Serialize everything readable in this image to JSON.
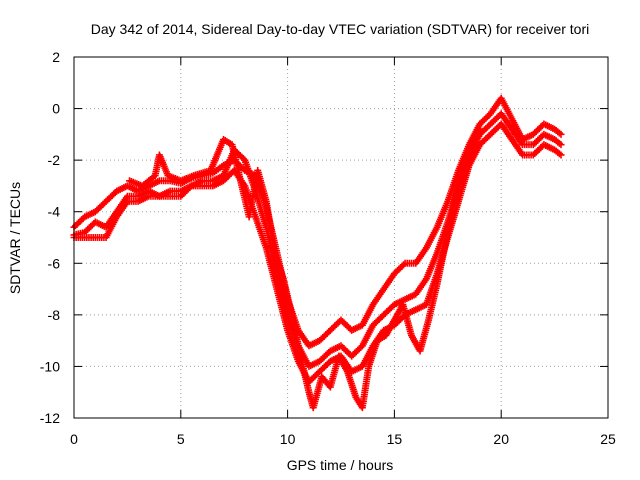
{
  "chart_data": {
    "type": "scatter",
    "title": "Day 342 of 2014, Sidereal Day-to-day VTEC variation (SDTVAR) for receiver tori",
    "xlabel": "GPS time / hours",
    "ylabel": "SDTVAR / TECUs",
    "xlim": [
      0,
      25
    ],
    "ylim": [
      -12,
      2
    ],
    "xticks": [
      0,
      5,
      10,
      15,
      20,
      25
    ],
    "yticks": [
      -12,
      -10,
      -8,
      -6,
      -4,
      -2,
      0,
      2
    ],
    "grid": true,
    "marker": "plus",
    "color": "#ff0000",
    "series": [
      {
        "x": [
          0.0,
          0.5,
          1.0,
          1.5,
          2.0,
          2.5,
          3.0,
          3.5,
          4.0,
          4.5,
          5.0,
          5.5,
          6.0,
          6.5,
          7.0,
          7.5,
          8.0,
          8.5,
          9.0,
          9.5,
          10.0,
          10.5,
          11.0,
          11.5,
          12.0,
          12.5,
          13.0,
          13.5,
          14.0,
          14.5,
          15.0,
          15.5,
          16.0,
          16.5,
          17.0,
          17.5,
          18.0,
          18.5,
          19.0,
          19.5,
          20.0,
          20.5,
          21.0,
          21.5,
          22.0,
          22.5,
          22.8
        ],
        "y": [
          -4.6,
          -4.2,
          -4.0,
          -3.6,
          -3.2,
          -3.0,
          -3.2,
          -3.0,
          -2.8,
          -2.8,
          -2.9,
          -2.7,
          -2.6,
          -2.5,
          -2.2,
          -2.0,
          -2.4,
          -2.6,
          -3.8,
          -5.6,
          -7.4,
          -8.6,
          -9.2,
          -9.0,
          -8.6,
          -8.2,
          -8.6,
          -8.4,
          -7.6,
          -7.0,
          -6.4,
          -6.0,
          -6.0,
          -5.4,
          -4.6,
          -3.6,
          -2.4,
          -1.4,
          -0.6,
          -0.2,
          0.4,
          -0.4,
          -1.2,
          -1.0,
          -0.6,
          -0.8,
          -1.0
        ]
      },
      {
        "x": [
          0.0,
          0.5,
          1.0,
          1.5,
          2.0,
          2.5,
          3.0,
          3.5,
          4.0,
          4.5,
          5.0,
          5.5,
          6.0,
          6.5,
          7.0,
          7.5,
          8.0,
          8.5,
          9.0,
          9.5,
          10.0,
          10.5,
          11.0,
          11.5,
          12.0,
          12.5,
          13.0,
          13.5,
          14.0,
          14.5,
          15.0,
          15.5,
          16.0,
          16.5,
          17.0,
          17.5,
          18.0,
          18.5,
          19.0,
          19.5,
          20.0,
          20.5,
          21.0,
          21.5,
          22.0,
          22.5,
          22.8
        ],
        "y": [
          -4.9,
          -4.8,
          -4.4,
          -4.6,
          -4.0,
          -3.4,
          -3.4,
          -3.2,
          -3.4,
          -3.2,
          -3.2,
          -3.0,
          -2.8,
          -2.8,
          -2.6,
          -1.6,
          -2.0,
          -3.2,
          -4.6,
          -6.4,
          -8.0,
          -9.2,
          -10.0,
          -9.8,
          -9.4,
          -9.2,
          -9.6,
          -9.2,
          -8.4,
          -8.0,
          -7.6,
          -7.4,
          -7.2,
          -6.6,
          -5.6,
          -4.4,
          -3.0,
          -1.8,
          -1.0,
          -0.6,
          -0.2,
          -0.8,
          -1.4,
          -1.4,
          -1.0,
          -1.2,
          -1.4
        ]
      },
      {
        "x": [
          0.0,
          0.5,
          1.0,
          1.5,
          2.0,
          2.5,
          3.0,
          3.5,
          4.0,
          4.5,
          5.0,
          5.5,
          6.0,
          6.5,
          7.0,
          7.5,
          8.0,
          8.5,
          9.0,
          9.5,
          10.0,
          10.5,
          11.0,
          11.5,
          12.0,
          12.5,
          13.0,
          13.5,
          14.0,
          14.5,
          15.0,
          15.5,
          16.0,
          16.5,
          17.0,
          17.5,
          18.0,
          18.5,
          19.0,
          19.5,
          20.0,
          20.5,
          21.0,
          21.5,
          22.0,
          22.5,
          22.8
        ],
        "y": [
          -5.0,
          -5.0,
          -5.0,
          -5.0,
          -4.2,
          -3.6,
          -3.6,
          -3.4,
          -3.4,
          -3.4,
          -3.4,
          -3.0,
          -3.0,
          -3.0,
          -2.8,
          -2.4,
          -3.0,
          -4.2,
          -5.4,
          -7.0,
          -8.6,
          -9.8,
          -10.6,
          -10.2,
          -9.8,
          -9.6,
          -10.2,
          -10.0,
          -9.2,
          -8.6,
          -8.4,
          -8.0,
          -7.8,
          -7.6,
          -6.4,
          -5.0,
          -3.6,
          -2.2,
          -1.4,
          -1.0,
          -0.6,
          -1.2,
          -1.8,
          -1.8,
          -1.4,
          -1.6,
          -1.8
        ]
      },
      {
        "x": [
          2.6,
          3.2,
          3.8,
          4.0,
          4.4,
          5.0,
          5.6,
          6.4,
          7.0,
          7.4,
          7.8,
          8.2,
          8.6,
          9.0,
          9.4,
          9.8,
          10.2,
          10.6,
          11.0,
          11.2,
          11.6,
          12.0,
          12.4,
          12.8,
          13.2,
          13.5,
          13.8,
          14.2,
          14.6,
          15.0,
          15.4,
          15.8,
          16.2,
          16.6,
          17.0,
          17.4,
          17.8,
          18.2,
          18.6,
          19.0
        ],
        "y": [
          -2.8,
          -3.0,
          -2.6,
          -1.8,
          -2.6,
          -2.8,
          -2.6,
          -2.4,
          -1.2,
          -1.4,
          -2.8,
          -4.2,
          -2.4,
          -3.6,
          -5.6,
          -6.6,
          -8.0,
          -9.6,
          -11.0,
          -11.6,
          -10.4,
          -10.8,
          -9.6,
          -10.2,
          -11.2,
          -11.6,
          -10.0,
          -9.0,
          -8.8,
          -8.2,
          -7.6,
          -8.8,
          -9.4,
          -8.2,
          -6.8,
          -5.2,
          -3.6,
          -2.4,
          -1.4,
          -0.8
        ]
      }
    ]
  }
}
